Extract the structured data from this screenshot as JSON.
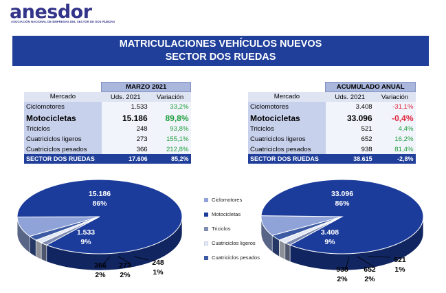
{
  "brand": {
    "name": "anesdor",
    "tagline": "ASOCIACIÓN NACIONAL DE EMPRESAS DEL SECTOR DE DOS RUEDAS"
  },
  "banner": {
    "line1": "MATRICULACIONES VEHÍCULOS NUEVOS",
    "line2": "SECTOR DOS RUEDAS"
  },
  "tables": [
    {
      "period": "MARZO 2021",
      "col_market": "Mercado",
      "col_units": "Uds. 2021",
      "col_var": "Variación",
      "rows": [
        {
          "market": "Ciclomotores",
          "units": "1.533",
          "var": "33,2%",
          "sign": "pos"
        },
        {
          "market": "Motocicletas",
          "units": "15.186",
          "var": "89,8%",
          "sign": "pos"
        },
        {
          "market": "Triciclos",
          "units": "248",
          "var": "93,8%",
          "sign": "pos"
        },
        {
          "market": "Cuatriciclos ligeros",
          "units": "273",
          "var": "155,1%",
          "sign": "pos"
        },
        {
          "market": "Cuatriciclos pesados",
          "units": "366",
          "var": "212,8%",
          "sign": "pos"
        }
      ],
      "total": {
        "market": "SECTOR DOS RUEDAS",
        "units": "17.606",
        "var": "85,2%",
        "sign": "pos"
      }
    },
    {
      "period": "ACUMULADO ANUAL",
      "col_market": "Mercado",
      "col_units": "Uds. 2021",
      "col_var": "Variación",
      "rows": [
        {
          "market": "Ciclomotores",
          "units": "3.408",
          "var": "-31,1%",
          "sign": "neg"
        },
        {
          "market": "Motocicletas",
          "units": "33.096",
          "var": "-0,4%",
          "sign": "neg"
        },
        {
          "market": "Triciclos",
          "units": "521",
          "var": "4,4%",
          "sign": "pos"
        },
        {
          "market": "Cuatriciclos ligeros",
          "units": "652",
          "var": "16,2%",
          "sign": "pos"
        },
        {
          "market": "Cuatriciclos pesados",
          "units": "938",
          "var": "81,4%",
          "sign": "pos"
        }
      ],
      "total": {
        "market": "SECTOR DOS RUEDAS",
        "units": "38.615",
        "var": "-2,8%",
        "sign": "neg"
      }
    }
  ],
  "legend": [
    {
      "label": "Ciclomotores",
      "color": "#8fa3d8"
    },
    {
      "label": "Motocicletas",
      "color": "#1c3c9c"
    },
    {
      "label": "Triciclos",
      "color": "#7f8cb2"
    },
    {
      "label": "Cuatriciclos ligeros",
      "color": "#e4e9f6"
    },
    {
      "label": "Cuatriciclos pesados",
      "color": "#3c5aa3"
    }
  ],
  "chart_data": [
    {
      "type": "pie",
      "title": "",
      "categories": [
        "Ciclomotores",
        "Motocicletas",
        "Triciclos",
        "Cuatriciclos ligeros",
        "Cuatriciclos pesados"
      ],
      "values": [
        1533,
        15186,
        248,
        273,
        366
      ],
      "value_labels": [
        "1.533",
        "15.186",
        "248",
        "273",
        "366"
      ],
      "pct_labels": [
        "9%",
        "86%",
        "1%",
        "2%",
        "2%"
      ]
    },
    {
      "type": "pie",
      "title": "",
      "categories": [
        "Ciclomotores",
        "Motocicletas",
        "Triciclos",
        "Cuatriciclos ligeros",
        "Cuatriciclos pesados"
      ],
      "values": [
        3408,
        33096,
        521,
        652,
        938
      ],
      "value_labels": [
        "3.408",
        "33.096",
        "521",
        "652",
        "938"
      ],
      "pct_labels": [
        "9%",
        "86%",
        "1%",
        "2%",
        "2%"
      ]
    }
  ]
}
